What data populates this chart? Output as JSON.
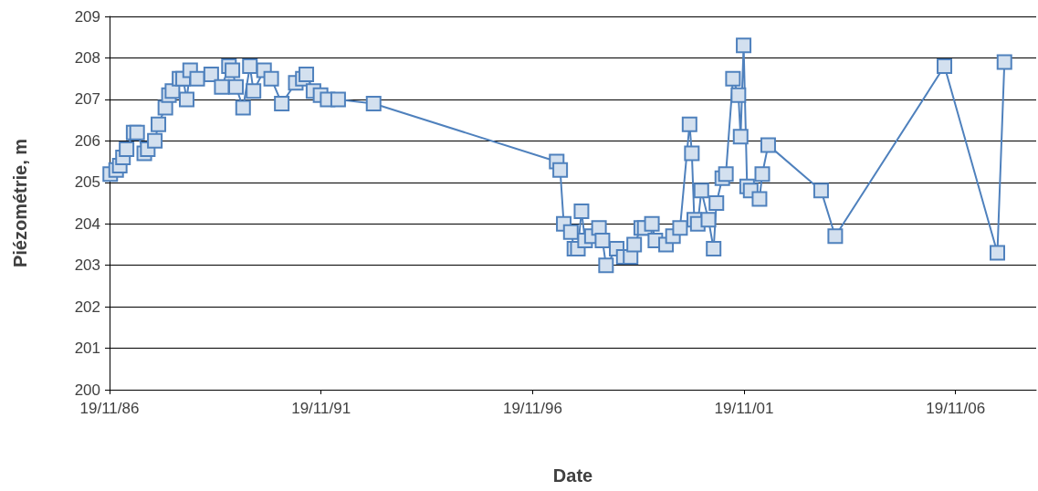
{
  "chart_data": {
    "type": "line",
    "xlabel": "Date",
    "ylabel": "Piézométrie, m",
    "x": [
      "1986-11-25",
      "1987-01-15",
      "1987-02-15",
      "1987-03-15",
      "1987-04-15",
      "1987-06-15",
      "1987-07-15",
      "1987-09-15",
      "1987-10-15",
      "1987-12-15",
      "1988-01-15",
      "1988-03-15",
      "1988-04-15",
      "1988-05-15",
      "1988-07-15",
      "1988-08-15",
      "1988-09-15",
      "1988-10-15",
      "1988-12-15",
      "1989-04-15",
      "1989-07-15",
      "1989-09-15",
      "1989-10-15",
      "1989-11-15",
      "1990-01-15",
      "1990-03-15",
      "1990-04-15",
      "1990-07-15",
      "1990-09-15",
      "1990-12-15",
      "1991-04-15",
      "1991-06-15",
      "1991-07-15",
      "1991-09-15",
      "1991-11-15",
      "1992-01-15",
      "1992-04-15",
      "1993-02-15",
      "1997-06-15",
      "1997-07-15",
      "1997-08-15",
      "1997-10-15",
      "1997-11-15",
      "1997-12-15",
      "1998-01-15",
      "1998-02-15",
      "1998-04-15",
      "1998-06-15",
      "1998-07-15",
      "1998-08-15",
      "1998-11-15",
      "1999-01-15",
      "1999-03-15",
      "1999-04-15",
      "1999-06-15",
      "1999-07-15",
      "1999-09-15",
      "1999-10-15",
      "2000-01-15",
      "2000-03-15",
      "2000-05-15",
      "2000-08-05",
      "2000-08-25",
      "2000-09-15",
      "2000-10-15",
      "2000-11-15",
      "2001-01-15",
      "2001-03-01",
      "2001-03-25",
      "2001-05-15",
      "2001-06-15",
      "2001-08-15",
      "2001-10-01",
      "2001-10-20",
      "2001-11-15",
      "2001-12-15",
      "2002-01-15",
      "2002-04-01",
      "2002-04-25",
      "2002-06-15",
      "2003-09-15",
      "2004-01-15",
      "2006-08-15",
      "2007-11-15",
      "2008-01-15"
    ],
    "series": [
      {
        "color": "#4f81bd",
        "values": [
          205.2,
          205.3,
          205.4,
          205.6,
          205.8,
          206.2,
          206.2,
          205.7,
          205.8,
          206.0,
          206.4,
          206.8,
          207.1,
          207.2,
          207.5,
          207.5,
          207.0,
          207.7,
          207.5,
          207.6,
          207.3,
          207.8,
          207.7,
          207.3,
          206.8,
          207.8,
          207.2,
          207.7,
          207.5,
          206.9,
          207.4,
          207.5,
          207.6,
          207.2,
          207.1,
          207.0,
          207.0,
          206.9,
          205.5,
          205.3,
          204.0,
          203.8,
          203.4,
          203.4,
          204.3,
          203.6,
          203.7,
          203.9,
          203.6,
          203.0,
          203.4,
          203.2,
          203.2,
          203.5,
          203.9,
          203.9,
          204.0,
          203.6,
          203.5,
          203.7,
          203.9,
          206.4,
          205.7,
          204.1,
          204.0,
          204.8,
          204.1,
          203.4,
          204.5,
          205.1,
          205.2,
          207.5,
          207.1,
          206.1,
          208.3,
          204.9,
          204.8,
          204.6,
          205.2,
          205.9,
          204.8,
          203.7,
          207.8,
          203.3,
          207.9
        ]
      }
    ],
    "xlim": [
      "1986-11-19",
      "2008-10-15"
    ],
    "xticks": [
      {
        "value": "1986-11-19",
        "label": "19/11/86"
      },
      {
        "value": "1991-11-19",
        "label": "19/11/91"
      },
      {
        "value": "1996-11-19",
        "label": "19/11/96"
      },
      {
        "value": "2001-11-19",
        "label": "19/11/01"
      },
      {
        "value": "2006-11-19",
        "label": "19/11/06"
      }
    ],
    "ylim": [
      200,
      209
    ],
    "yticks": [
      200,
      201,
      202,
      203,
      204,
      205,
      206,
      207,
      208,
      209
    ],
    "grid": "y",
    "marker": "square",
    "line_style": "solid"
  }
}
